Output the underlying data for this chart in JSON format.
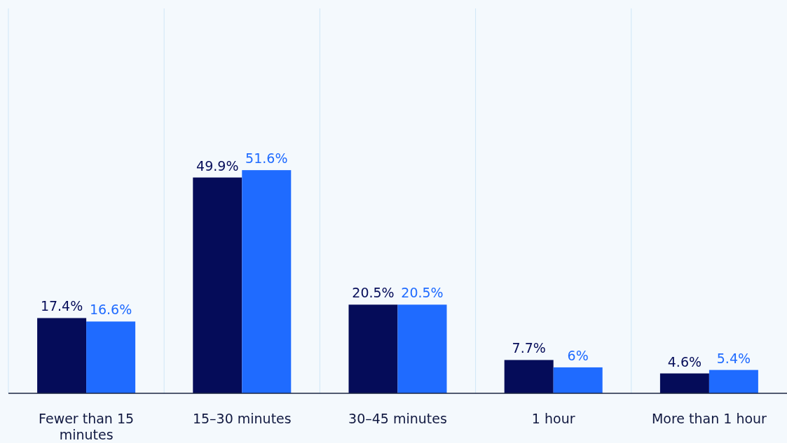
{
  "chart_data": {
    "type": "bar",
    "categories": [
      "Fewer than 15 minutes",
      "15–30 minutes",
      "30–45 minutes",
      "1 hour",
      "More than 1 hour"
    ],
    "series": [
      {
        "color": "#050c59",
        "values": [
          17.4,
          49.9,
          20.5,
          7.7,
          4.6
        ],
        "value_labels": [
          "17.4%",
          "49.9%",
          "20.5%",
          "7.7%",
          "4.6%"
        ]
      },
      {
        "color": "#1f6bff",
        "values": [
          16.6,
          51.6,
          20.5,
          6,
          5.4
        ],
        "value_labels": [
          "16.6%",
          "51.6%",
          "20.5%",
          "6%",
          "5.4%"
        ]
      }
    ],
    "ylim": [
      0,
      89
    ],
    "tick_labels": "x",
    "grid": "x"
  }
}
